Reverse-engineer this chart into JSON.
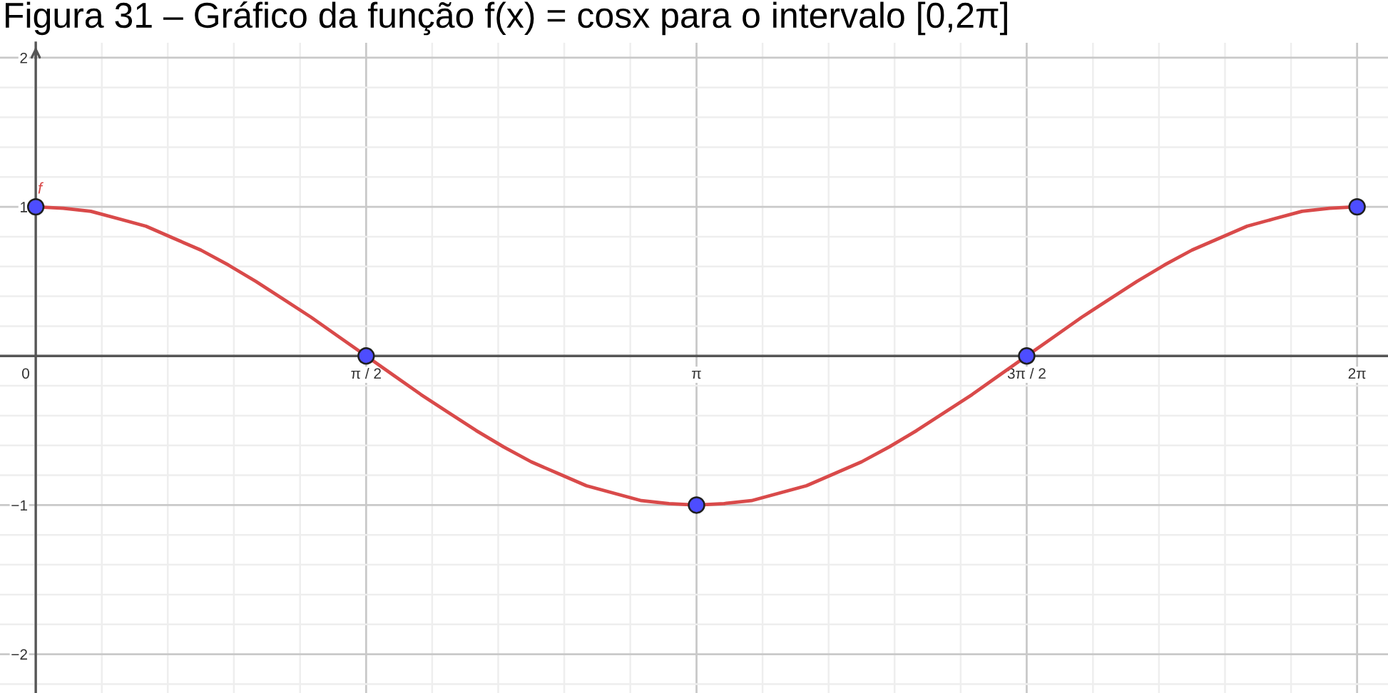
{
  "chart_data": {
    "type": "line",
    "title": "Figura 31 – Gráfico da função f(x) = cosx para o intervalo [0,2π]",
    "xlim": [
      -0.17,
      6.43
    ],
    "ylim": [
      -2.26,
      2.1
    ],
    "xticks": [
      {
        "value": 0,
        "label": "0"
      },
      {
        "value": 0.314,
        "label": null
      },
      {
        "value": 0.628,
        "label": null
      },
      {
        "value": 0.942,
        "label": null
      },
      {
        "value": 1.257,
        "label": null
      },
      {
        "value": 1.571,
        "label": "π / 2"
      },
      {
        "value": 1.885,
        "label": null
      },
      {
        "value": 2.199,
        "label": null
      },
      {
        "value": 2.513,
        "label": null
      },
      {
        "value": 2.827,
        "label": null
      },
      {
        "value": 3.142,
        "label": "π"
      },
      {
        "value": 3.456,
        "label": null
      },
      {
        "value": 3.77,
        "label": null
      },
      {
        "value": 4.084,
        "label": null
      },
      {
        "value": 4.398,
        "label": null
      },
      {
        "value": 4.712,
        "label": "3π / 2"
      },
      {
        "value": 5.027,
        "label": null
      },
      {
        "value": 5.341,
        "label": null
      },
      {
        "value": 5.655,
        "label": null
      },
      {
        "value": 5.969,
        "label": null
      },
      {
        "value": 6.283,
        "label": "2π"
      }
    ],
    "yticks": [
      {
        "value": -2.2,
        "label": null
      },
      {
        "value": -2,
        "label": "−2"
      },
      {
        "value": -1.8,
        "label": null
      },
      {
        "value": -1.6,
        "label": null
      },
      {
        "value": -1.4,
        "label": null
      },
      {
        "value": -1.2,
        "label": null
      },
      {
        "value": -1,
        "label": "−1"
      },
      {
        "value": -0.8,
        "label": null
      },
      {
        "value": -0.6,
        "label": null
      },
      {
        "value": -0.4,
        "label": null
      },
      {
        "value": -0.2,
        "label": null
      },
      {
        "value": 0.2,
        "label": null
      },
      {
        "value": 0.4,
        "label": null
      },
      {
        "value": 0.6,
        "label": null
      },
      {
        "value": 0.8,
        "label": null
      },
      {
        "value": 1,
        "label": "1"
      },
      {
        "value": 1.2,
        "label": null
      },
      {
        "value": 1.4,
        "label": null
      },
      {
        "value": 1.6,
        "label": null
      },
      {
        "value": 1.8,
        "label": null
      },
      {
        "value": 2,
        "label": "2"
      }
    ],
    "grid": true,
    "series": [
      {
        "name": "f",
        "color": "#d94a4a",
        "marker": "none",
        "line_style": "solid",
        "x": [
          0,
          0.131,
          0.262,
          0.393,
          0.524,
          0.654,
          0.785,
          0.916,
          1.047,
          1.178,
          1.309,
          1.44,
          1.571,
          1.702,
          1.833,
          1.963,
          2.094,
          2.225,
          2.356,
          2.487,
          2.618,
          2.749,
          2.88,
          3.011,
          3.142,
          3.272,
          3.403,
          3.534,
          3.665,
          3.796,
          3.927,
          4.058,
          4.189,
          4.32,
          4.451,
          4.581,
          4.712,
          4.843,
          4.974,
          5.105,
          5.236,
          5.367,
          5.498,
          5.629,
          5.76,
          5.89,
          6.021,
          6.152,
          6.283
        ],
        "values": [
          1,
          0.99,
          0.97,
          0.92,
          0.87,
          0.79,
          0.71,
          0.61,
          0.5,
          0.38,
          0.26,
          0.13,
          0,
          -0.13,
          -0.26,
          -0.38,
          -0.5,
          -0.61,
          -0.71,
          -0.79,
          -0.87,
          -0.92,
          -0.97,
          -0.99,
          -1,
          -0.99,
          -0.97,
          -0.92,
          -0.87,
          -0.79,
          -0.71,
          -0.61,
          -0.5,
          -0.38,
          -0.26,
          -0.13,
          0,
          0.13,
          0.26,
          0.38,
          0.5,
          0.61,
          0.71,
          0.79,
          0.87,
          0.92,
          0.97,
          0.99,
          1
        ]
      },
      {
        "type": "scatter",
        "color": "#4d4dff",
        "marker": "circle",
        "x": [
          0,
          1.571,
          3.142,
          4.712,
          6.283
        ],
        "values": [
          1,
          0,
          -1,
          0,
          1
        ]
      }
    ]
  }
}
